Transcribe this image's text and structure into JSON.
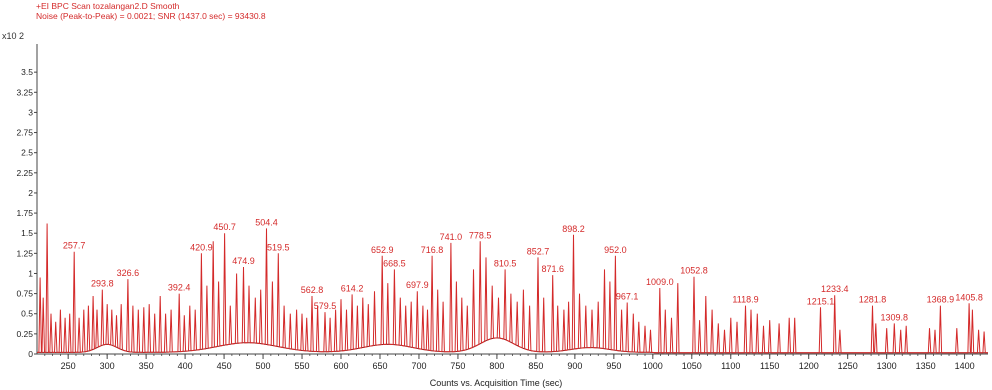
{
  "header": {
    "line1": "+EI BPC Scan tozalangan2.D  Smooth",
    "line2": "Noise (Peak-to-Peak) = 0.0021; SNR (1437.0 sec) = 93430.8",
    "multiplier": "x10 2"
  },
  "colors": {
    "trace": "#d42a2a",
    "baseline": "#8a1c1c",
    "axis": "#444444",
    "text": "#222222"
  },
  "chart_data": {
    "type": "line",
    "xlabel": "Counts vs. Acquisition Time (sec)",
    "ylabel": "",
    "xlim": [
      210,
      1430
    ],
    "ylim": [
      0,
      3.8
    ],
    "yticks": [
      "0",
      "0.25",
      "0.5",
      "0.75",
      "1",
      "1.25",
      "1.5",
      "1.75",
      "2",
      "2.25",
      "2.5",
      "2.75",
      "3",
      "3.25",
      "3.5"
    ],
    "ytick_values": [
      0,
      0.25,
      0.5,
      0.75,
      1,
      1.25,
      1.5,
      1.75,
      2,
      2.25,
      2.5,
      2.75,
      3,
      3.25,
      3.5
    ],
    "xticks": [
      "250",
      "300",
      "350",
      "400",
      "450",
      "500",
      "550",
      "600",
      "650",
      "700",
      "750",
      "800",
      "850",
      "900",
      "950",
      "1000",
      "1050",
      "1100",
      "1150",
      "1200",
      "1250",
      "1300",
      "1350",
      "1400"
    ],
    "xtick_values": [
      250,
      300,
      350,
      400,
      450,
      500,
      550,
      600,
      650,
      700,
      750,
      800,
      850,
      900,
      950,
      1000,
      1050,
      1100,
      1150,
      1200,
      1250,
      1300,
      1350,
      1400
    ],
    "peak_labels": [
      {
        "x": 257.7,
        "y": 1.27,
        "label": "257.7"
      },
      {
        "x": 293.8,
        "y": 0.8,
        "label": "293.8"
      },
      {
        "x": 326.6,
        "y": 0.93,
        "label": "326.6"
      },
      {
        "x": 392.4,
        "y": 0.75,
        "label": "392.4"
      },
      {
        "x": 420.9,
        "y": 1.25,
        "label": "420.9"
      },
      {
        "x": 450.7,
        "y": 1.5,
        "label": "450.7"
      },
      {
        "x": 474.9,
        "y": 1.08,
        "label": "474.9"
      },
      {
        "x": 504.4,
        "y": 1.56,
        "label": "504.4"
      },
      {
        "x": 519.5,
        "y": 1.25,
        "label": "519.5"
      },
      {
        "x": 562.8,
        "y": 0.72,
        "label": "562.8"
      },
      {
        "x": 579.5,
        "y": 0.52,
        "label": "579.5"
      },
      {
        "x": 614.2,
        "y": 0.74,
        "label": "614.2"
      },
      {
        "x": 652.9,
        "y": 1.22,
        "label": "652.9"
      },
      {
        "x": 668.5,
        "y": 1.05,
        "label": "668.5"
      },
      {
        "x": 697.9,
        "y": 0.78,
        "label": "697.9"
      },
      {
        "x": 716.8,
        "y": 1.22,
        "label": "716.8"
      },
      {
        "x": 741.0,
        "y": 1.38,
        "label": "741.0"
      },
      {
        "x": 778.5,
        "y": 1.4,
        "label": "778.5"
      },
      {
        "x": 810.5,
        "y": 1.05,
        "label": "810.5"
      },
      {
        "x": 852.7,
        "y": 1.2,
        "label": "852.7"
      },
      {
        "x": 871.6,
        "y": 0.98,
        "label": "871.6"
      },
      {
        "x": 898.2,
        "y": 1.48,
        "label": "898.2"
      },
      {
        "x": 952.0,
        "y": 1.22,
        "label": "952.0"
      },
      {
        "x": 967.1,
        "y": 0.64,
        "label": "967.1"
      },
      {
        "x": 1009.0,
        "y": 0.82,
        "label": "1009.0"
      },
      {
        "x": 1052.8,
        "y": 0.96,
        "label": "1052.8"
      },
      {
        "x": 1118.9,
        "y": 0.6,
        "label": "1118.9"
      },
      {
        "x": 1215.1,
        "y": 0.58,
        "label": "1215.1"
      },
      {
        "x": 1233.4,
        "y": 0.73,
        "label": "1233.4"
      },
      {
        "x": 1281.8,
        "y": 0.6,
        "label": "1281.8"
      },
      {
        "x": 1309.8,
        "y": 0.38,
        "label": "1309.8"
      },
      {
        "x": 1368.9,
        "y": 0.6,
        "label": "1368.9"
      },
      {
        "x": 1405.8,
        "y": 0.63,
        "label": "1405.8"
      }
    ],
    "extra_peaks": [
      {
        "x": 214,
        "y": 0.95
      },
      {
        "x": 218,
        "y": 0.7
      },
      {
        "x": 223,
        "y": 1.62
      },
      {
        "x": 228,
        "y": 0.5
      },
      {
        "x": 234,
        "y": 0.4
      },
      {
        "x": 240,
        "y": 0.55
      },
      {
        "x": 246,
        "y": 0.45
      },
      {
        "x": 252,
        "y": 0.5
      },
      {
        "x": 264,
        "y": 0.45
      },
      {
        "x": 270,
        "y": 0.55
      },
      {
        "x": 276,
        "y": 0.6
      },
      {
        "x": 282,
        "y": 0.72
      },
      {
        "x": 287,
        "y": 0.55
      },
      {
        "x": 300,
        "y": 0.62
      },
      {
        "x": 306,
        "y": 0.55
      },
      {
        "x": 312,
        "y": 0.48
      },
      {
        "x": 318,
        "y": 0.62
      },
      {
        "x": 333,
        "y": 0.6
      },
      {
        "x": 340,
        "y": 0.55
      },
      {
        "x": 347,
        "y": 0.58
      },
      {
        "x": 354,
        "y": 0.62
      },
      {
        "x": 361,
        "y": 0.5
      },
      {
        "x": 368,
        "y": 0.72
      },
      {
        "x": 375,
        "y": 0.5
      },
      {
        "x": 382,
        "y": 0.55
      },
      {
        "x": 399,
        "y": 0.48
      },
      {
        "x": 406,
        "y": 0.6
      },
      {
        "x": 413,
        "y": 0.55
      },
      {
        "x": 428,
        "y": 0.85
      },
      {
        "x": 436,
        "y": 1.4
      },
      {
        "x": 443,
        "y": 0.9
      },
      {
        "x": 458,
        "y": 0.6
      },
      {
        "x": 466,
        "y": 1.0
      },
      {
        "x": 482,
        "y": 0.85
      },
      {
        "x": 490,
        "y": 0.7
      },
      {
        "x": 497,
        "y": 0.8
      },
      {
        "x": 512,
        "y": 0.9
      },
      {
        "x": 527,
        "y": 0.6
      },
      {
        "x": 535,
        "y": 0.5
      },
      {
        "x": 543,
        "y": 0.55
      },
      {
        "x": 550,
        "y": 0.5
      },
      {
        "x": 556,
        "y": 0.45
      },
      {
        "x": 570,
        "y": 0.6
      },
      {
        "x": 586,
        "y": 0.45
      },
      {
        "x": 593,
        "y": 0.55
      },
      {
        "x": 600,
        "y": 0.68
      },
      {
        "x": 607,
        "y": 0.55
      },
      {
        "x": 621,
        "y": 0.6
      },
      {
        "x": 628,
        "y": 0.7
      },
      {
        "x": 635,
        "y": 0.62
      },
      {
        "x": 643,
        "y": 0.78
      },
      {
        "x": 660,
        "y": 0.88
      },
      {
        "x": 676,
        "y": 0.7
      },
      {
        "x": 683,
        "y": 0.6
      },
      {
        "x": 690,
        "y": 0.65
      },
      {
        "x": 705,
        "y": 0.6
      },
      {
        "x": 711,
        "y": 0.55
      },
      {
        "x": 724,
        "y": 0.8
      },
      {
        "x": 731,
        "y": 0.65
      },
      {
        "x": 748,
        "y": 0.9
      },
      {
        "x": 755,
        "y": 0.7
      },
      {
        "x": 762,
        "y": 0.6
      },
      {
        "x": 770,
        "y": 1.05
      },
      {
        "x": 786,
        "y": 1.2
      },
      {
        "x": 794,
        "y": 0.85
      },
      {
        "x": 802,
        "y": 0.7
      },
      {
        "x": 818,
        "y": 0.75
      },
      {
        "x": 826,
        "y": 0.65
      },
      {
        "x": 834,
        "y": 0.8
      },
      {
        "x": 842,
        "y": 0.6
      },
      {
        "x": 860,
        "y": 0.7
      },
      {
        "x": 878,
        "y": 0.6
      },
      {
        "x": 886,
        "y": 0.55
      },
      {
        "x": 892,
        "y": 0.65
      },
      {
        "x": 906,
        "y": 0.75
      },
      {
        "x": 914,
        "y": 0.6
      },
      {
        "x": 922,
        "y": 0.55
      },
      {
        "x": 930,
        "y": 0.65
      },
      {
        "x": 938,
        "y": 1.05
      },
      {
        "x": 945,
        "y": 0.9
      },
      {
        "x": 960,
        "y": 0.55
      },
      {
        "x": 975,
        "y": 0.5
      },
      {
        "x": 982,
        "y": 0.4
      },
      {
        "x": 990,
        "y": 0.35
      },
      {
        "x": 997,
        "y": 0.3
      },
      {
        "x": 1016,
        "y": 0.55
      },
      {
        "x": 1024,
        "y": 0.45
      },
      {
        "x": 1032,
        "y": 0.88
      },
      {
        "x": 1060,
        "y": 0.42
      },
      {
        "x": 1068,
        "y": 0.72
      },
      {
        "x": 1076,
        "y": 0.55
      },
      {
        "x": 1084,
        "y": 0.38
      },
      {
        "x": 1092,
        "y": 0.3
      },
      {
        "x": 1100,
        "y": 0.45
      },
      {
        "x": 1108,
        "y": 0.4
      },
      {
        "x": 1126,
        "y": 0.55
      },
      {
        "x": 1134,
        "y": 0.5
      },
      {
        "x": 1142,
        "y": 0.35
      },
      {
        "x": 1150,
        "y": 0.42
      },
      {
        "x": 1162,
        "y": 0.38
      },
      {
        "x": 1175,
        "y": 0.45
      },
      {
        "x": 1182,
        "y": 0.45
      },
      {
        "x": 1240,
        "y": 0.3
      },
      {
        "x": 1286,
        "y": 0.38
      },
      {
        "x": 1300,
        "y": 0.32
      },
      {
        "x": 1318,
        "y": 0.3
      },
      {
        "x": 1325,
        "y": 0.35
      },
      {
        "x": 1355,
        "y": 0.32
      },
      {
        "x": 1362,
        "y": 0.3
      },
      {
        "x": 1390,
        "y": 0.32
      },
      {
        "x": 1410,
        "y": 0.55
      },
      {
        "x": 1418,
        "y": 0.3
      },
      {
        "x": 1425,
        "y": 0.28
      }
    ],
    "grid": false,
    "legend": "none"
  }
}
